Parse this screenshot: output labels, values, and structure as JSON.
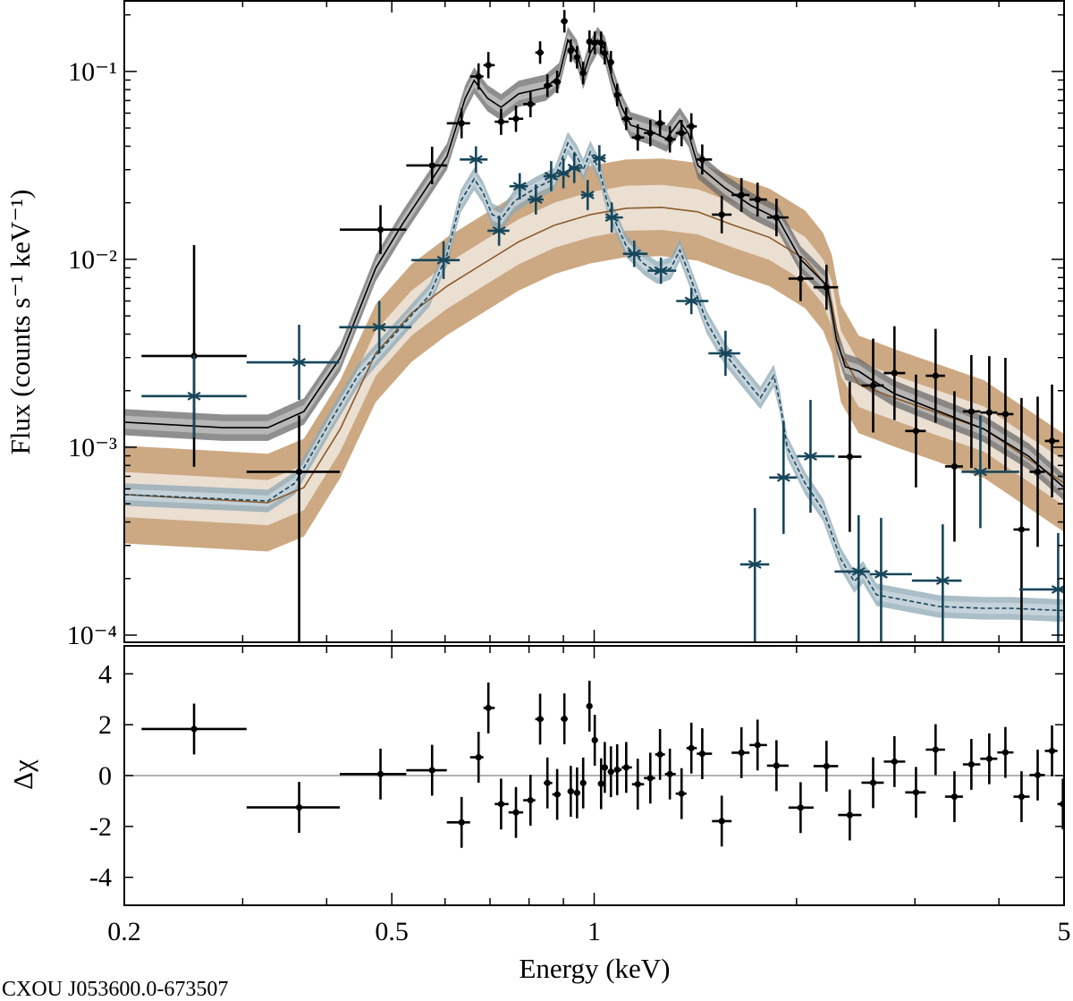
{
  "chart_data": {
    "type": "scatter",
    "source_label": "CXOU J053600.0-673507",
    "xlabel": "Energy (keV)",
    "xscale": "log",
    "xlim": [
      0.2,
      5.0
    ],
    "xticks": [
      {
        "value": 0.2,
        "label": "0.2"
      },
      {
        "value": 0.5,
        "label": "0.5"
      },
      {
        "value": 1,
        "label": "1"
      },
      {
        "value": 5,
        "label": "5"
      }
    ],
    "top_panel": {
      "ylabel": "Flux (counts s⁻¹ keV⁻¹)",
      "yscale": "log",
      "ylim": [
        9.16e-05,
        0.24
      ],
      "yticks": [
        {
          "value": 0.1,
          "label": "10⁻¹"
        },
        {
          "value": 0.01,
          "label": "10⁻²"
        },
        {
          "value": 0.001,
          "label": "10⁻³"
        },
        {
          "value": 0.0001,
          "label": "10⁻⁴"
        }
      ],
      "data_series": [
        {
          "color": "#000000",
          "marker": "dot",
          "x": [
            0.254,
            0.364,
            0.481,
            0.574,
            0.635,
            0.673,
            0.696,
            0.727,
            0.765,
            0.804,
            0.831,
            0.852,
            0.881,
            0.903,
            0.923,
            0.943,
            0.963,
            0.984,
            1.002,
            1.024,
            1.037,
            1.059,
            1.082,
            1.116,
            1.161,
            1.212,
            1.253,
            1.296,
            1.349,
            1.395,
            1.448,
            1.548,
            1.656,
            1.75,
            1.867,
            2.028,
            2.216,
            2.4,
            2.6,
            2.797,
            3.011,
            3.22,
            3.435,
            3.64,
            3.87,
            4.09,
            4.322,
            4.568,
            4.798
          ],
          "y": [
            0.00306,
            0.00074,
            0.0144,
            0.0316,
            0.053,
            0.094,
            0.108,
            0.054,
            0.056,
            0.067,
            0.126,
            0.084,
            0.088,
            0.185,
            0.129,
            0.119,
            0.098,
            0.144,
            0.142,
            0.142,
            0.125,
            0.112,
            0.075,
            0.056,
            0.0445,
            0.047,
            0.053,
            0.0435,
            0.047,
            0.051,
            0.034,
            0.0173,
            0.022,
            0.0208,
            0.0167,
            0.0079,
            0.0071,
            0.00089,
            0.00213,
            0.00248,
            0.00122,
            0.0024,
            0.00079,
            0.00155,
            0.00153,
            0.0015,
            0.000365,
            0.00074,
            0.00108
          ],
          "err_dex": [
            0.59,
            [
              1.0,
              0.3
            ],
            0.13,
            0.1,
            0.08,
            0.07,
            0.07,
            0.07,
            0.07,
            0.07,
            0.06,
            0.06,
            0.06,
            0.06,
            0.06,
            0.06,
            0.06,
            0.06,
            0.06,
            0.06,
            0.06,
            0.06,
            0.06,
            0.06,
            0.07,
            0.07,
            0.07,
            0.07,
            0.07,
            0.07,
            0.08,
            0.1,
            0.09,
            0.09,
            0.1,
            0.12,
            0.12,
            0.4,
            0.25,
            0.25,
            0.3,
            0.25,
            0.4,
            0.3,
            0.3,
            0.3,
            [
              1.0,
              0.7
            ],
            0.4,
            0.3
          ]
        },
        {
          "color": "#17465a",
          "marker": "asterisk",
          "x": [
            0.254,
            0.364,
            0.479,
            0.597,
            0.667,
            0.722,
            0.775,
            0.819,
            0.863,
            0.9,
            0.934,
            0.978,
            1.018,
            1.062,
            1.147,
            1.257,
            1.395,
            1.568,
            1.734,
            1.913,
            2.098,
            2.474,
            2.672,
            3.3,
            3.754,
            4.9
          ],
          "y": [
            0.00187,
            0.00283,
            0.00435,
            0.0099,
            0.034,
            0.0142,
            0.0245,
            0.0208,
            0.0277,
            0.0287,
            0.0306,
            0.022,
            0.0345,
            0.0167,
            0.0107,
            0.0087,
            0.006,
            0.00316,
            0.000238,
            0.00069,
            0.000895,
            0.000218,
            0.000211,
            0.000195,
            0.00074,
            0.000175
          ],
          "err_dex": [
            0.22,
            0.2,
            0.14,
            0.1,
            0.07,
            0.08,
            0.07,
            0.08,
            0.08,
            0.08,
            0.08,
            0.08,
            0.07,
            0.08,
            0.07,
            0.07,
            0.07,
            0.12,
            [
              1.0,
              0.3
            ],
            0.3,
            0.3,
            [
              1.0,
              0.3
            ],
            [
              1.0,
              0.3
            ],
            [
              1.0,
              0.3
            ],
            0.3,
            [
              1.0,
              0.3
            ]
          ]
        }
      ],
      "model_series": [
        {
          "color": "#8a5a2b",
          "line": "solid",
          "band_colors": [
            "#ece2d6",
            "#c9a47c"
          ],
          "band_dex": [
            0.12,
            0.26
          ],
          "points": [
            [
              0.2,
              0.00056
            ],
            [
              0.327,
              0.000507
            ],
            [
              0.37,
              0.00061
            ],
            [
              0.419,
              0.00125
            ],
            [
              0.473,
              0.00316
            ],
            [
              0.535,
              0.00518
            ],
            [
              0.604,
              0.0072
            ],
            [
              0.683,
              0.00946
            ],
            [
              0.772,
              0.0124
            ],
            [
              0.873,
              0.0152
            ],
            [
              0.987,
              0.0173
            ],
            [
              1.116,
              0.0187
            ],
            [
              1.261,
              0.0189
            ],
            [
              1.426,
              0.0179
            ],
            [
              1.611,
              0.0152
            ],
            [
              1.822,
              0.0131
            ],
            [
              2.059,
              0.01
            ],
            [
              2.19,
              0.0076
            ],
            [
              2.258,
              0.00578
            ],
            [
              2.328,
              0.00316
            ],
            [
              2.474,
              0.00216
            ],
            [
              2.797,
              0.00183
            ],
            [
              3.8,
              0.00125
            ],
            [
              5.0,
              0.000645
            ]
          ]
        },
        {
          "color": "#17465a",
          "line": "dashed",
          "band_colors": [
            "#cfdae1",
            "#8ea8b6"
          ],
          "band_dex": [
            0.03,
            0.06
          ],
          "points": [
            [
              0.2,
              0.00056
            ],
            [
              0.327,
              0.000518
            ],
            [
              0.359,
              0.000645
            ],
            [
              0.406,
              0.00139
            ],
            [
              0.445,
              0.0024
            ],
            [
              0.503,
              0.00393
            ],
            [
              0.569,
              0.00645
            ],
            [
              0.604,
              0.0106
            ],
            [
              0.633,
              0.0204
            ],
            [
              0.663,
              0.0268
            ],
            [
              0.683,
              0.0228
            ],
            [
              0.705,
              0.0173
            ],
            [
              0.727,
              0.0164
            ],
            [
              0.761,
              0.0204
            ],
            [
              0.821,
              0.0241
            ],
            [
              0.873,
              0.0268
            ],
            [
              0.914,
              0.0416
            ],
            [
              0.943,
              0.0353
            ],
            [
              0.963,
              0.0299
            ],
            [
              0.987,
              0.0373
            ],
            [
              1.018,
              0.0299
            ],
            [
              1.049,
              0.0193
            ],
            [
              1.116,
              0.0118
            ],
            [
              1.186,
              0.00946
            ],
            [
              1.242,
              0.00849
            ],
            [
              1.3,
              0.00896
            ],
            [
              1.341,
              0.0112
            ],
            [
              1.382,
              0.00849
            ],
            [
              1.47,
              0.00464
            ],
            [
              1.563,
              0.00316
            ],
            [
              1.661,
              0.0024
            ],
            [
              1.767,
              0.00183
            ],
            [
              1.85,
              0.0024
            ],
            [
              1.89,
              0.00173
            ],
            [
              1.937,
              0.001
            ],
            [
              2.059,
              0.000645
            ],
            [
              2.19,
              0.000464
            ],
            [
              2.328,
              0.000254
            ],
            [
              2.437,
              0.000193
            ],
            [
              2.512,
              0.000216
            ],
            [
              2.63,
              0.000164
            ],
            [
              3.26,
              0.000142
            ],
            [
              3.8,
              0.000139
            ],
            [
              4.166,
              0.000139
            ],
            [
              5.0,
              0.000135
            ]
          ]
        },
        {
          "color": "#000000",
          "line": "solid",
          "band_colors": [
            "#c4c4c4",
            "#6a6a6a"
          ],
          "band_dex": [
            0.035,
            0.07
          ],
          "points": [
            [
              0.2,
              0.00136
            ],
            [
              0.281,
              0.00127
            ],
            [
              0.327,
              0.00127
            ],
            [
              0.37,
              0.00155
            ],
            [
              0.419,
              0.00299
            ],
            [
              0.473,
              0.00896
            ],
            [
              0.519,
              0.0155
            ],
            [
              0.569,
              0.0254
            ],
            [
              0.604,
              0.0353
            ],
            [
              0.643,
              0.072
            ],
            [
              0.663,
              0.0896
            ],
            [
              0.694,
              0.072
            ],
            [
              0.727,
              0.0645
            ],
            [
              0.772,
              0.076
            ],
            [
              0.847,
              0.082
            ],
            [
              0.887,
              0.0946
            ],
            [
              0.914,
              0.147
            ],
            [
              0.943,
              0.125
            ],
            [
              0.963,
              0.0946
            ],
            [
              0.987,
              0.125
            ],
            [
              1.012,
              0.147
            ],
            [
              1.037,
              0.131
            ],
            [
              1.065,
              0.0896
            ],
            [
              1.099,
              0.0645
            ],
            [
              1.133,
              0.0518
            ],
            [
              1.223,
              0.0474
            ],
            [
              1.281,
              0.0439
            ],
            [
              1.341,
              0.0547
            ],
            [
              1.382,
              0.0465
            ],
            [
              1.426,
              0.0316
            ],
            [
              1.563,
              0.0241
            ],
            [
              1.713,
              0.0193
            ],
            [
              1.878,
              0.0164
            ],
            [
              2.028,
              0.01
            ],
            [
              2.224,
              0.0072
            ],
            [
              2.293,
              0.00373
            ],
            [
              2.364,
              0.00268
            ],
            [
              2.474,
              0.00254
            ],
            [
              2.59,
              0.00228
            ],
            [
              2.797,
              0.00193
            ],
            [
              3.26,
              0.00155
            ],
            [
              3.8,
              0.00125
            ],
            [
              4.428,
              0.000896
            ],
            [
              5.0,
              0.00061
            ]
          ]
        }
      ]
    },
    "bottom_panel": {
      "ylabel": "Δχ",
      "ylim": [
        -5.1,
        5.1
      ],
      "yticks": [
        {
          "value": 4,
          "label": "4"
        },
        {
          "value": 2,
          "label": "2"
        },
        {
          "value": 0,
          "label": "0"
        },
        {
          "value": -2,
          "label": "-2"
        },
        {
          "value": -4,
          "label": "-4"
        }
      ],
      "reference_line": 0,
      "reference_color": "#999999",
      "residuals": {
        "color": "#000000",
        "x": [
          0.254,
          0.364,
          0.481,
          0.574,
          0.635,
          0.673,
          0.696,
          0.727,
          0.765,
          0.804,
          0.831,
          0.852,
          0.881,
          0.903,
          0.923,
          0.943,
          0.963,
          0.984,
          1.002,
          1.024,
          1.037,
          1.059,
          1.082,
          1.116,
          1.161,
          1.212,
          1.253,
          1.296,
          1.349,
          1.395,
          1.448,
          1.548,
          1.656,
          1.75,
          1.867,
          2.028,
          2.216,
          2.4,
          2.6,
          2.797,
          3.011,
          3.22,
          3.435,
          3.64,
          3.87,
          4.09,
          4.322,
          4.568,
          4.798,
          4.98
        ],
        "y": [
          1.83,
          -1.25,
          0.06,
          0.21,
          -1.84,
          0.72,
          2.66,
          -1.12,
          -1.45,
          -0.97,
          2.22,
          -0.29,
          -0.74,
          2.23,
          -0.62,
          -0.68,
          -0.29,
          2.73,
          1.39,
          -0.32,
          0.32,
          0.15,
          0.23,
          0.32,
          -0.34,
          -0.1,
          0.83,
          0.06,
          -0.71,
          1.08,
          0.86,
          -1.79,
          0.9,
          1.2,
          0.39,
          -1.26,
          0.37,
          -1.55,
          -0.28,
          0.55,
          -0.66,
          1.02,
          -0.83,
          0.44,
          0.66,
          0.91,
          -0.83,
          0.02,
          0.97,
          -1.12
        ],
        "err": 1
      }
    }
  }
}
